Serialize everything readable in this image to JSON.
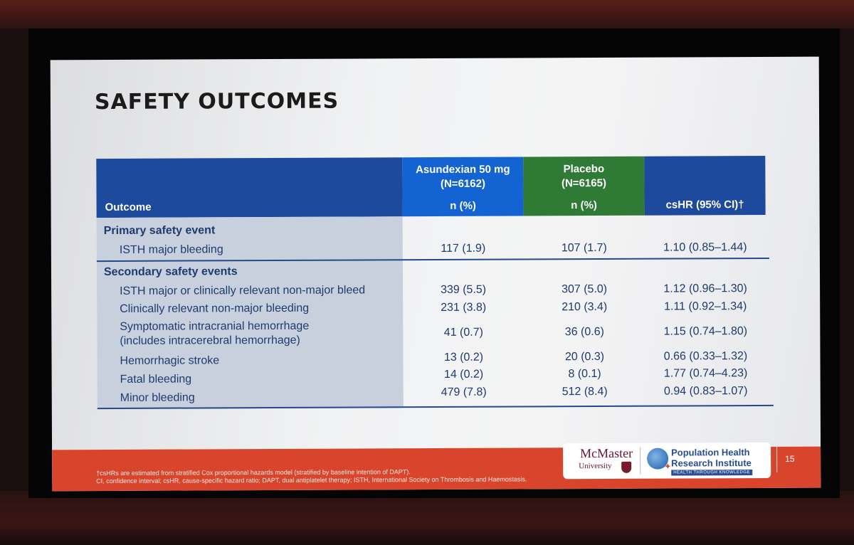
{
  "slide": {
    "title": "SAFETY OUTCOMES",
    "page_number": "15"
  },
  "table": {
    "headers": {
      "outcome": "Outcome",
      "asundexian_line1": "Asundexian 50 mg",
      "asundexian_line2": "(N=6162)",
      "asundexian_line3": "n (%)",
      "placebo_line1": "Placebo",
      "placebo_line2": "(N=6165)",
      "placebo_line3": "n (%)",
      "hr": "csHR (95% CI)†"
    },
    "sections": {
      "primary": "Primary safety event",
      "secondary": "Secondary safety events"
    },
    "rows": [
      {
        "label": "ISTH major bleeding",
        "asundexian": "117 (1.9)",
        "placebo": "107 (1.7)",
        "hr": "1.10 (0.85–1.44)"
      },
      {
        "label": "ISTH major or clinically relevant non-major bleed",
        "asundexian": "339 (5.5)",
        "placebo": "307 (5.0)",
        "hr": "1.12 (0.96–1.30)"
      },
      {
        "label": "Clinically relevant non-major bleeding",
        "asundexian": "231 (3.8)",
        "placebo": "210 (3.4)",
        "hr": "1.11 (0.92–1.34)"
      },
      {
        "label": "Symptomatic intracranial hemorrhage",
        "label2": "(includes intracerebral hemorrhage)",
        "asundexian": "41 (0.7)",
        "placebo": "36 (0.6)",
        "hr": "1.15 (0.74–1.80)"
      },
      {
        "label": "Hemorrhagic stroke",
        "asundexian": "13 (0.2)",
        "placebo": "20 (0.3)",
        "hr": "0.66 (0.33–1.32)"
      },
      {
        "label": "Fatal bleeding",
        "asundexian": "14 (0.2)",
        "placebo": "8 (0.1)",
        "hr": "1.77 (0.74–4.23)"
      },
      {
        "label": "Minor bleeding",
        "asundexian": "479 (7.8)",
        "placebo": "512 (8.4)",
        "hr": "0.94 (0.83–1.07)"
      }
    ]
  },
  "footnotes": {
    "line1": "†csHRs are estimated from stratified Cox proportional hazards model (stratified by baseline intention of DAPT).",
    "line2": "CI, confidence interval; csHR, cause-specific hazard ratio; DAPT, dual antiplatelet therapy; ISTH, International Society on Thrombosis and Haemostasis."
  },
  "logos": {
    "mcmaster_name": "McMaster",
    "mcmaster_university": "University",
    "phri_line1": "Population Health",
    "phri_line2": "Research Institute",
    "phri_tagline": "HEALTH THROUGH KNOWLEDGE",
    "crest_icon": "university-crest-icon",
    "globe_icon": "globe-icon"
  }
}
